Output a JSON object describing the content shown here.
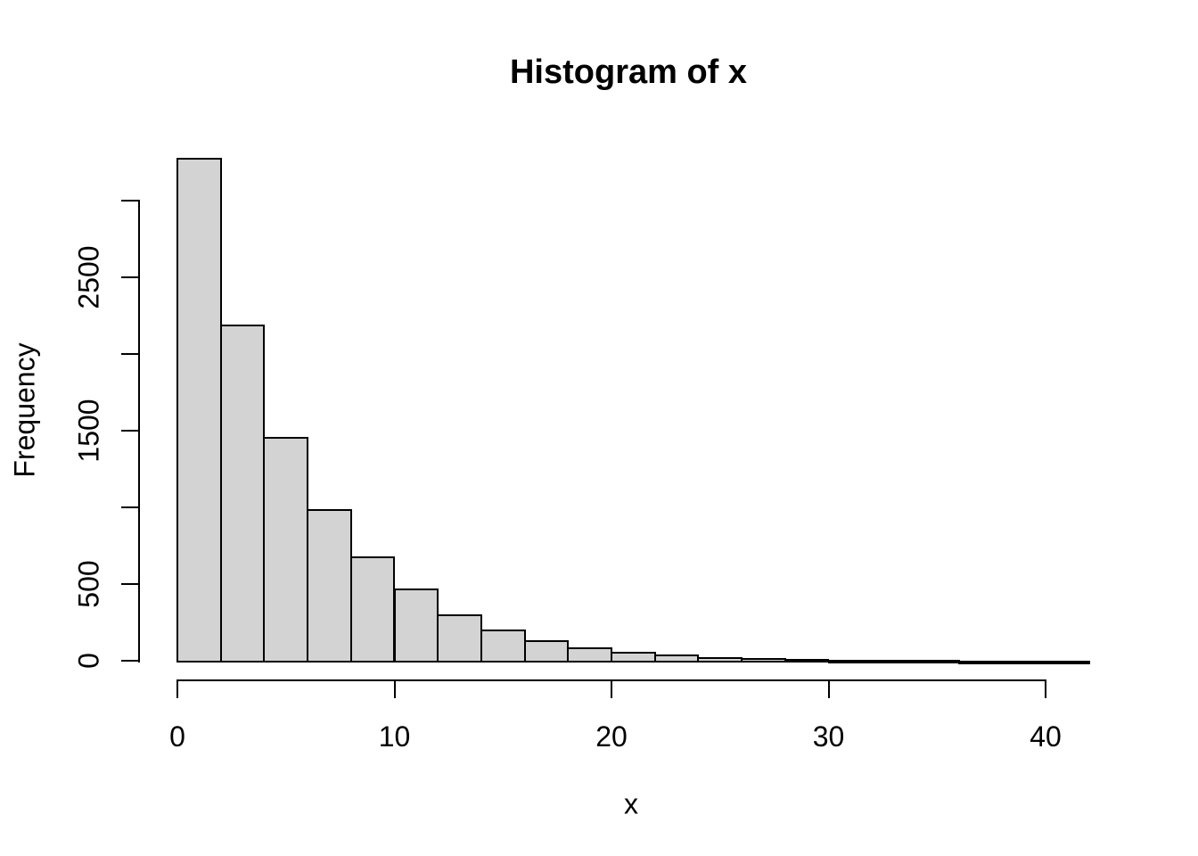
{
  "figure": {
    "title": "Histogram of x",
    "x_axis_label": "x",
    "y_axis_label": "Frequency"
  },
  "chart_data": {
    "type": "bar",
    "subtype": "histogram",
    "title": "Histogram of x",
    "xlabel": "x",
    "ylabel": "Frequency",
    "bin_start": 0,
    "bin_width": 2,
    "bin_edges": [
      0,
      2,
      4,
      6,
      8,
      10,
      12,
      14,
      16,
      18,
      20,
      22,
      24,
      26,
      28,
      30,
      32,
      34,
      36,
      38,
      40,
      42
    ],
    "counts": [
      3280,
      2190,
      1460,
      990,
      680,
      470,
      300,
      205,
      135,
      90,
      60,
      42,
      25,
      18,
      12,
      8,
      5,
      4,
      2,
      1,
      1
    ],
    "xlim": [
      0,
      42
    ],
    "ylim": [
      0,
      3000
    ],
    "x_ticks": [
      0,
      10,
      20,
      30,
      40
    ],
    "x_tick_labels": [
      "0",
      "10",
      "20",
      "30",
      "40"
    ],
    "y_ticks": [
      0,
      500,
      1000,
      1500,
      2000,
      2500,
      3000
    ],
    "y_tick_labels": [
      "0",
      "500",
      "",
      "1500",
      "",
      "2500",
      ""
    ],
    "grid": false,
    "legend": false,
    "bar_fill_color": "#d3d3d3",
    "bar_border_color": "#000000",
    "axis_color": "#000000",
    "text_color": "#000000",
    "background_color": "#ffffff"
  }
}
